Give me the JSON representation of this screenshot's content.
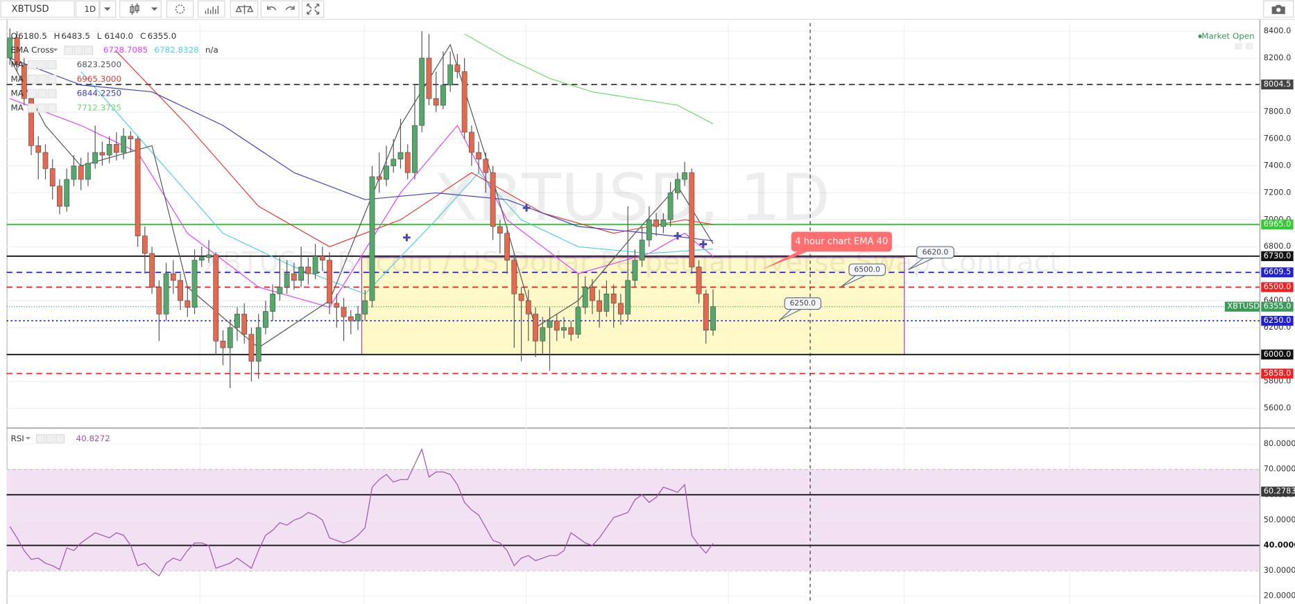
{
  "toolbar": {
    "symbol": "XBTUSD",
    "interval": "1D"
  },
  "chart_data": [
    {
      "type": "candlestick",
      "title": "XBTUSD, 1D",
      "subtitle": "XBTUSD: Bitcoin / US Dollar Perpetual Inverse Swap Contract",
      "status": "Market Open",
      "ylim": [
        5460,
        8460
      ],
      "yticks": [
        {
          "value": 5600,
          "label": "5600.0"
        },
        {
          "value": 5800,
          "label": "5800.0"
        },
        {
          "value": 6000,
          "label": "6000.0"
        },
        {
          "value": 6200,
          "label": "6200.0"
        },
        {
          "value": 6400,
          "label": "6400.0"
        },
        {
          "value": 6600,
          "label": "6600.0"
        },
        {
          "value": 6800,
          "label": "6800.0"
        },
        {
          "value": 7000,
          "label": "7000.0"
        },
        {
          "value": 7200,
          "label": "7200.0"
        },
        {
          "value": 7400,
          "label": "7400.0"
        },
        {
          "value": 7600,
          "label": "7600.0"
        },
        {
          "value": 7800,
          "label": "7800.0"
        },
        {
          "value": 8000,
          "label": "8000.0"
        },
        {
          "value": 8200,
          "label": "8200.0"
        },
        {
          "value": 8400,
          "label": "8400.0"
        }
      ],
      "grid": true,
      "up_color": "#53a86a",
      "down_color": "#e4694f",
      "ohlc_readout": [
        {
          "key": "O",
          "text": "6180.5"
        },
        {
          "key": "H",
          "text": "6483.5"
        },
        {
          "key": "L",
          "text": "6140.0"
        },
        {
          "key": "C",
          "text": "6355.0"
        }
      ],
      "open": [
        8200,
        8350,
        8150,
        7900,
        7550,
        7500,
        7380,
        7250,
        7100,
        7300,
        7400,
        7300,
        7420,
        7500,
        7480,
        7560,
        7500,
        7620,
        7600,
        6880,
        6750,
        6500,
        6300,
        6600,
        6550,
        6400,
        6350,
        6700,
        6720,
        6740,
        6100,
        6050,
        6200,
        6300,
        6150,
        5950,
        6200,
        6320,
        6450,
        6500,
        6600,
        6550,
        6650,
        6600,
        6730,
        6700,
        6380,
        6350,
        6280,
        6250,
        6300,
        6400,
        7320,
        7300,
        7400,
        7450,
        7500,
        7350,
        7700,
        8200,
        7900,
        7850,
        8000,
        8150,
        8100,
        7650,
        7500,
        7450,
        7350,
        6950,
        6900,
        6700,
        6450,
        6400,
        6300,
        6100,
        6200,
        6250,
        6180,
        6200,
        6150,
        6350,
        6500,
        6400,
        6320,
        6450,
        6380,
        6300,
        6550,
        6700,
        6850,
        7000,
        6950,
        7000,
        7200,
        7300,
        7350,
        6650,
        6450,
        6180.5
      ],
      "high": [
        8420,
        8400,
        8200,
        7950,
        7620,
        7560,
        7450,
        7300,
        7380,
        7480,
        7460,
        7500,
        7700,
        7580,
        7620,
        7650,
        7680,
        7660,
        7620,
        6950,
        6800,
        6550,
        6680,
        6700,
        6600,
        6500,
        6780,
        6800,
        6850,
        6760,
        6180,
        6260,
        6350,
        6380,
        6200,
        6300,
        6400,
        6520,
        6720,
        6700,
        6680,
        6800,
        6720,
        6820,
        6800,
        6760,
        6450,
        6420,
        6330,
        6360,
        6480,
        7400,
        7500,
        7550,
        7600,
        7750,
        7560,
        8000,
        8400,
        8380,
        8100,
        8250,
        8250,
        8230,
        8200,
        7700,
        7580,
        7500,
        7400,
        7000,
        6950,
        6750,
        6500,
        6480,
        6350,
        6280,
        6350,
        6300,
        6280,
        6250,
        6600,
        6580,
        6560,
        6480,
        6550,
        6520,
        6450,
        7100,
        6780,
        6950,
        7100,
        7050,
        7050,
        7280,
        7350,
        7430,
        7380,
        6700,
        6480,
        6483.5
      ],
      "low": [
        8150,
        8100,
        7850,
        7480,
        7300,
        7300,
        7150,
        7040,
        7060,
        7250,
        7220,
        7250,
        7380,
        7400,
        7420,
        7440,
        7450,
        7500,
        6800,
        6600,
        6450,
        6100,
        6250,
        6450,
        6330,
        6280,
        6300,
        6650,
        6680,
        6000,
        5920,
        5750,
        6100,
        6080,
        5800,
        5820,
        6150,
        6250,
        6400,
        6450,
        6480,
        6500,
        6520,
        6560,
        6620,
        6300,
        6200,
        6100,
        6150,
        6180,
        6250,
        6350,
        7200,
        7250,
        7350,
        7380,
        7300,
        7300,
        7650,
        7850,
        7800,
        7820,
        7950,
        8050,
        7600,
        7400,
        7350,
        7200,
        6850,
        6750,
        6600,
        6050,
        5950,
        6100,
        5980,
        6000,
        5880,
        6100,
        6120,
        6100,
        6120,
        6300,
        6300,
        6200,
        6280,
        6200,
        6220,
        6250,
        6500,
        6650,
        6800,
        6880,
        6900,
        6950,
        7150,
        7250,
        6600,
        6380,
        6080,
        6140
      ],
      "close": [
        8350,
        8150,
        7900,
        7550,
        7500,
        7380,
        7250,
        7100,
        7300,
        7400,
        7300,
        7420,
        7500,
        7480,
        7560,
        7500,
        7620,
        7600,
        6880,
        6750,
        6500,
        6300,
        6600,
        6550,
        6400,
        6350,
        6700,
        6720,
        6740,
        6100,
        6050,
        6200,
        6300,
        6150,
        5950,
        6200,
        6320,
        6450,
        6500,
        6600,
        6550,
        6650,
        6600,
        6730,
        6700,
        6380,
        6350,
        6280,
        6250,
        6300,
        6400,
        7320,
        7300,
        7400,
        7450,
        7500,
        7350,
        7700,
        8200,
        7900,
        7850,
        8000,
        8150,
        8100,
        7650,
        7500,
        7450,
        7350,
        6950,
        6900,
        6700,
        6450,
        6400,
        6300,
        6100,
        6200,
        6250,
        6180,
        6200,
        6150,
        6350,
        6500,
        6400,
        6320,
        6450,
        6380,
        6300,
        6550,
        6700,
        6850,
        7000,
        6950,
        7000,
        7200,
        7300,
        7350,
        6650,
        6450,
        6180.5,
        6355
      ],
      "overlays": [
        {
          "name": "EMA Cross",
          "legend_values": [
            "6728.7085",
            "6782.8328",
            "n/a"
          ],
          "lines": [
            {
              "color": "#e040fb",
              "x": [
                0,
                10,
                18,
                25,
                35,
                45,
                55,
                63,
                70,
                80,
                90,
                95,
                99
              ],
              "values": [
                7900,
                7700,
                7500,
                6900,
                6500,
                6350,
                7200,
                7700,
                7000,
                6600,
                6750,
                6900,
                6728.7085
              ]
            },
            {
              "color": "#4dd0e1",
              "x": [
                10,
                20,
                30,
                40,
                50,
                60,
                66,
                72,
                80,
                90,
                99
              ],
              "values": [
                8100,
                7500,
                6900,
                6650,
                6450,
                7000,
                7350,
                7000,
                6800,
                6750,
                6782.8328
              ]
            }
          ]
        },
        {
          "name": "MA",
          "legend_values": [
            "6823.2500"
          ],
          "lines": [
            {
              "color": "#555555",
              "x": [
                0,
                5,
                10,
                20,
                25,
                35,
                45,
                55,
                62,
                68,
                74,
                80,
                88,
                94,
                99
              ],
              "values": [
                8200,
                7700,
                7400,
                7550,
                6500,
                6050,
                6400,
                7700,
                8300,
                7300,
                6200,
                6400,
                6900,
                7250,
                6823.25
              ]
            }
          ]
        },
        {
          "name": "MA",
          "legend_values": [
            "6965.3000"
          ],
          "lines": [
            {
              "color": "#e53935",
              "x": [
                15,
                25,
                35,
                45,
                55,
                65,
                75,
                85,
                95,
                99
              ],
              "values": [
                8250,
                7700,
                7100,
                6800,
                7000,
                7350,
                7050,
                6900,
                7000,
                6965.3
              ]
            }
          ]
        },
        {
          "name": "MA",
          "legend_values": [
            "6844.2250"
          ],
          "lines": [
            {
              "color": "#3f3fbf",
              "x": [
                0,
                10,
                20,
                30,
                40,
                50,
                60,
                70,
                80,
                90,
                99
              ],
              "values": [
                8200,
                8000,
                7950,
                7700,
                7350,
                7150,
                7200,
                7150,
                6950,
                6900,
                6844.225
              ]
            }
          ]
        },
        {
          "name": "MA",
          "legend_values": [
            "7712.3725"
          ],
          "lines": [
            {
              "color": "#66dd66",
              "x": [
                64,
                70,
                76,
                82,
                88,
                94,
                99
              ],
              "values": [
                8380,
                8200,
                8050,
                7950,
                7900,
                7850,
                7712.3725
              ]
            }
          ]
        }
      ],
      "hlines": [
        {
          "value": 8004.5,
          "label": "8004.5",
          "color": "#444444",
          "style": "dash"
        },
        {
          "value": 6965,
          "label": "6965.0",
          "color": "#33cc33",
          "style": "solid"
        },
        {
          "value": 6730,
          "label": "6730.0",
          "color": "#111111",
          "style": "solid"
        },
        {
          "value": 6609.5,
          "label": "6609.5",
          "color": "#2222cc",
          "style": "dash"
        },
        {
          "value": 6500,
          "label": "6500.0",
          "color": "#ee2222",
          "style": "dash"
        },
        {
          "value": 6250,
          "label": "6250.0",
          "color": "#2222cc",
          "style": "dot"
        },
        {
          "value": 6000,
          "label": "6000.0",
          "color": "#111111",
          "style": "solid"
        },
        {
          "value": 5858,
          "label": "5858.0",
          "color": "#ee2222",
          "style": "dash"
        }
      ],
      "last_price": {
        "symbol": "XBTUSD",
        "value": 6355,
        "label": "6355.0",
        "color": "#3a9a5a"
      },
      "zone": [
        6000,
        6720
      ],
      "annotations": [
        {
          "text": "4 hour chart EMA 40"
        },
        {
          "text": "6620.0"
        },
        {
          "text": "6500.0"
        },
        {
          "text": "6250.0"
        }
      ]
    },
    {
      "type": "line",
      "title": "RSI",
      "readout": "40.8272",
      "color": "#a050b0",
      "ylim": [
        17,
        86
      ],
      "yticks": [
        {
          "value": 20,
          "label": "20.0000"
        },
        {
          "value": 30,
          "label": "30.0000"
        },
        {
          "value": 50,
          "label": "50.0000"
        },
        {
          "value": 70,
          "label": "70.0000"
        },
        {
          "value": 80,
          "label": "80.0000"
        }
      ],
      "band": [
        30,
        70
      ],
      "hlines": [
        {
          "value": 60,
          "label": "60.0000"
        },
        {
          "value": 40,
          "label": "40.0000"
        }
      ],
      "marker": {
        "value": 60.2783,
        "label": "60.2783"
      },
      "values": [
        47.5,
        43,
        38,
        34.5,
        35,
        33,
        32,
        30.5,
        39,
        38,
        41,
        43,
        45,
        44,
        43,
        45,
        44,
        40,
        32,
        33,
        30,
        28,
        33,
        35,
        34,
        38,
        41,
        41,
        40,
        31,
        32,
        33,
        35,
        33,
        31,
        38,
        44,
        46,
        49,
        48,
        50,
        51,
        53,
        52,
        50,
        43,
        42,
        41,
        42,
        44,
        47,
        63,
        66,
        68,
        65,
        66,
        66,
        72,
        78,
        67,
        69,
        69,
        68,
        64,
        57,
        54,
        52,
        47,
        42,
        41,
        38,
        32,
        35,
        36,
        34,
        35,
        36,
        36,
        38,
        45,
        43,
        41,
        40,
        43,
        47,
        51,
        52,
        53,
        58,
        60,
        57,
        59,
        63,
        62,
        61,
        64,
        44,
        40,
        37,
        40.8272
      ]
    }
  ]
}
